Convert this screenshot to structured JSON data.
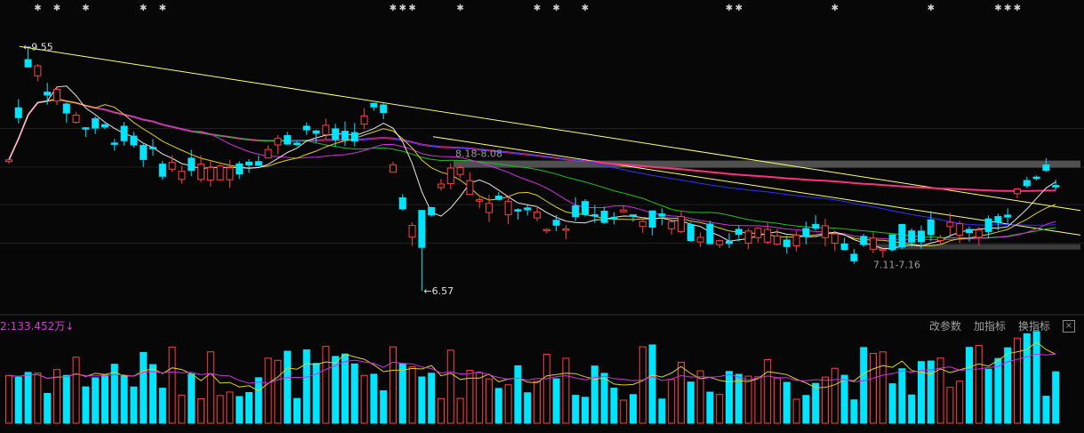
{
  "chart_data": {
    "type": "candlestick",
    "annotations": {
      "high_label": "←9.55",
      "low_label": "←6.57",
      "upper_zone_label": "8.18-8.08",
      "lower_zone_label": "7.11-7.16",
      "high_value": 9.55,
      "low_value": 6.57,
      "upper_zone": [
        8.08,
        8.18
      ],
      "lower_zone": [
        7.11,
        7.16
      ]
    },
    "event_marker_count": 22,
    "colors": {
      "up": "#ff4040",
      "down": "#00e4ff",
      "ma5": "#e8e8e8",
      "ma10": "#e0d020",
      "ma20": "#d030e0",
      "ma30": "#20c020",
      "ma60": "#3030ff",
      "ma250": "#ff3080",
      "trendline": "#ffff70",
      "zone": "#505050"
    },
    "volume": {
      "indicator_label": "2:133.452万",
      "arrow": "↓"
    }
  },
  "toolbar": {
    "btn_params": "改参数",
    "btn_add": "加指标",
    "btn_switch": "换指标",
    "close": "×"
  }
}
